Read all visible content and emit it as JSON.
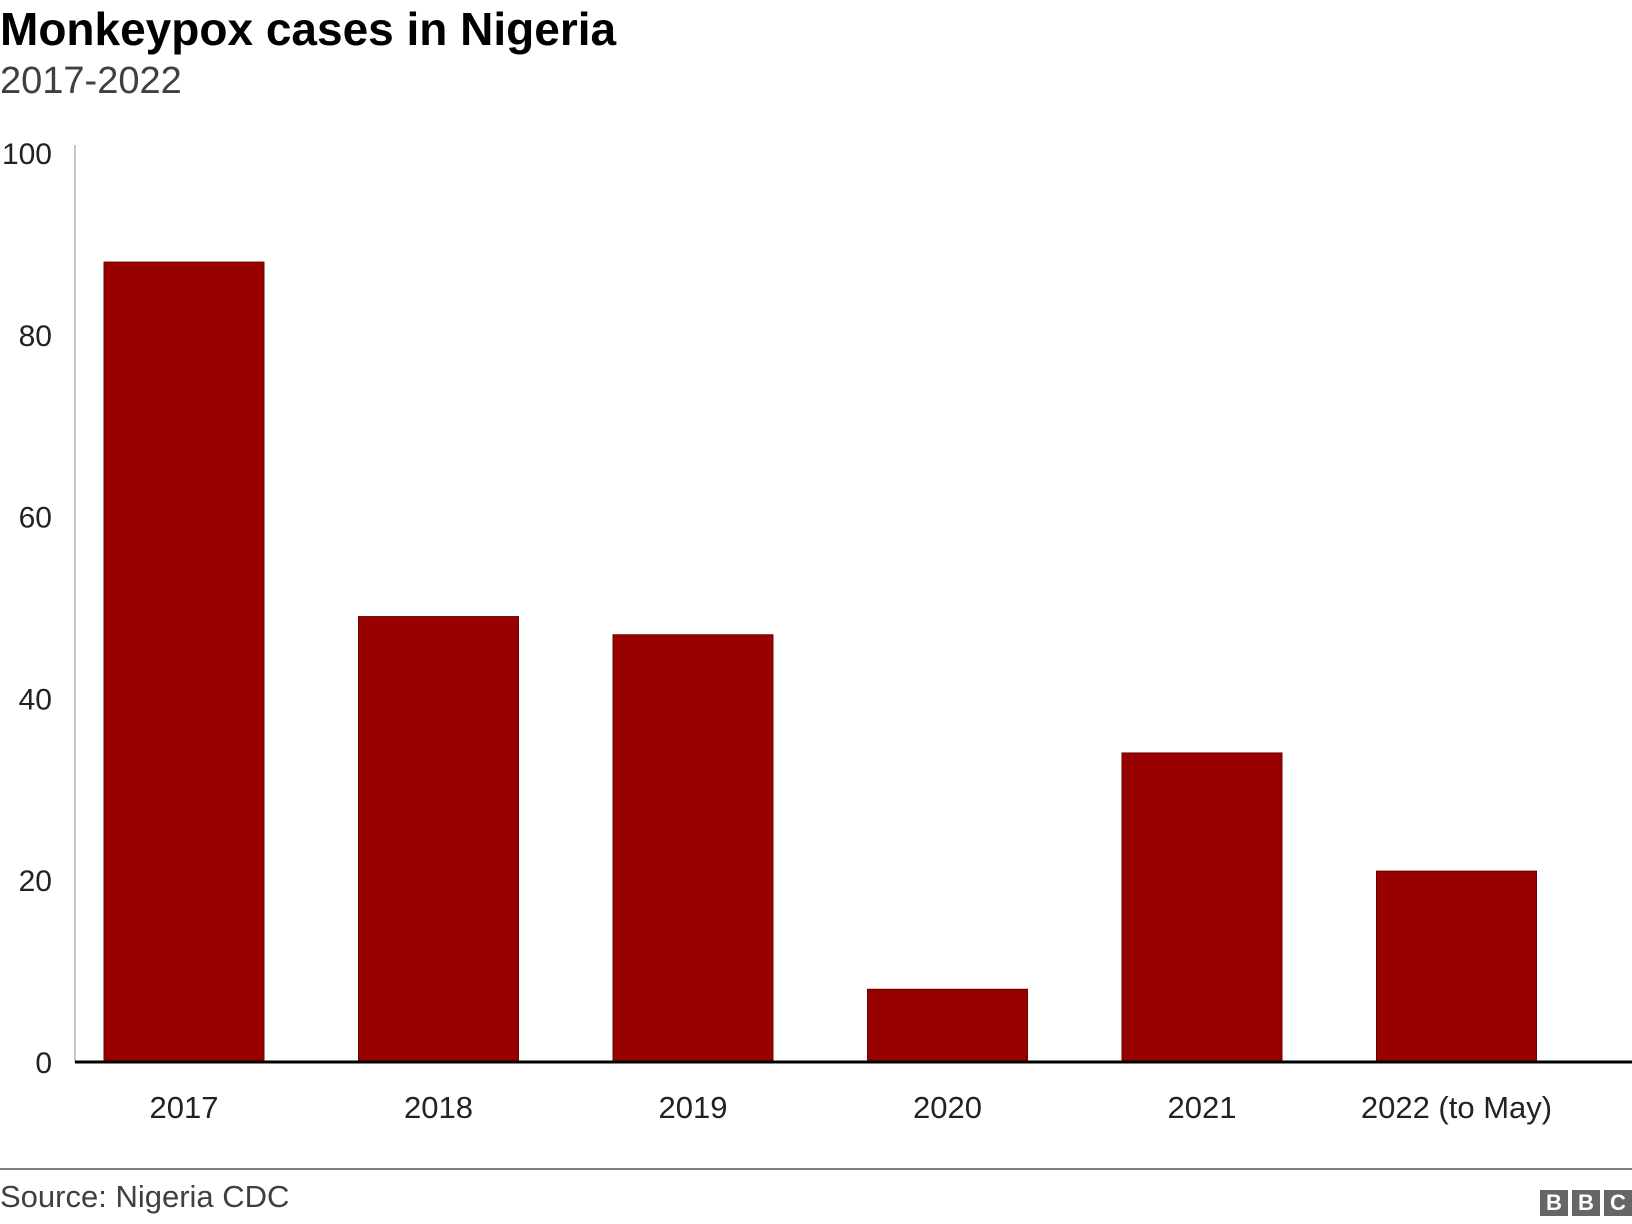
{
  "chart_data": {
    "type": "bar",
    "title": "Monkeypox cases in Nigeria",
    "subtitle": "2017-2022",
    "categories": [
      "2017",
      "2018",
      "2019",
      "2020",
      "2021",
      "2022 (to May)"
    ],
    "values": [
      88,
      49,
      47,
      8,
      34,
      21
    ],
    "ylim": [
      0,
      100
    ],
    "yticks": [
      "0",
      "20",
      "40",
      "60",
      "80",
      "100"
    ],
    "bar_color": "#990000",
    "grid": false,
    "source": "Source: Nigeria CDC"
  },
  "logo": "BBC"
}
